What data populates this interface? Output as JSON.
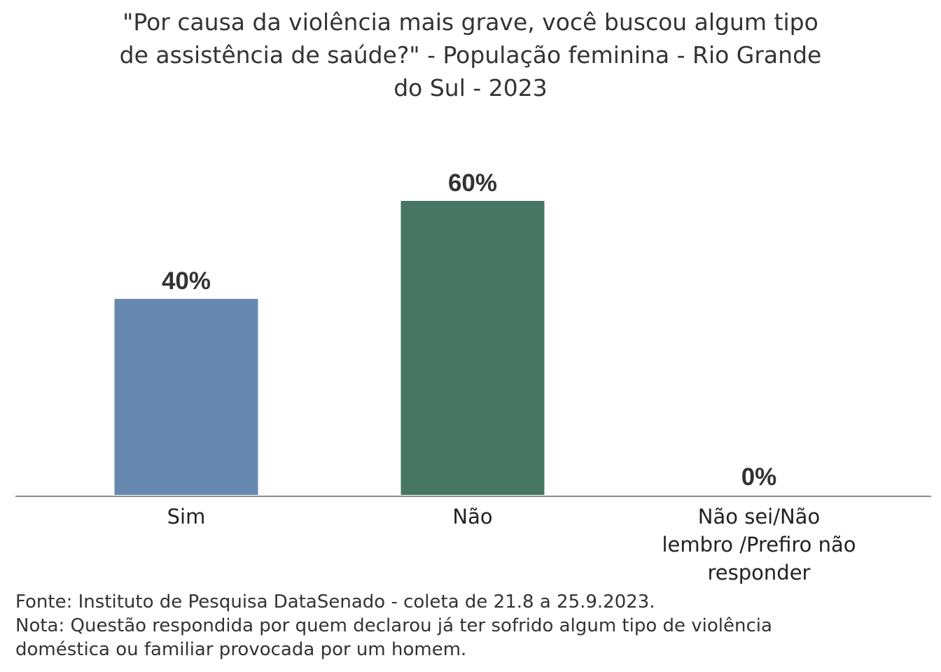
{
  "title_lines": [
    "\"Por causa da violência mais grave, você buscou algum tipo",
    "de assistência de saúde?\" - População feminina - Rio Grande",
    "do Sul - 2023"
  ],
  "chart_data": {
    "type": "bar",
    "title": "\"Por causa da violência mais grave, você buscou algum tipo de assistência de saúde?\" - População feminina - Rio Grande do Sul - 2023",
    "categories": [
      [
        "Sim"
      ],
      [
        "Não"
      ],
      [
        "Não sei/Não",
        "lembro /Prefiro não",
        "responder"
      ]
    ],
    "values": [
      40,
      60,
      0
    ],
    "value_labels": [
      "40%",
      "60%",
      "0%"
    ],
    "colors": [
      "#6688b0",
      "#467564",
      "#8a8a8a"
    ],
    "ylim": [
      0,
      60
    ],
    "grid": false,
    "legend": "none",
    "xlabel": "",
    "ylabel": ""
  },
  "footer": {
    "source": "Fonte: Instituto de Pesquisa DataSenado - coleta de 21.8 a 25.9.2023.",
    "note_lines": [
      "Nota: Questão respondida por quem declarou já ter sofrido algum tipo de violência",
      "doméstica ou familiar provocada por um homem."
    ]
  }
}
